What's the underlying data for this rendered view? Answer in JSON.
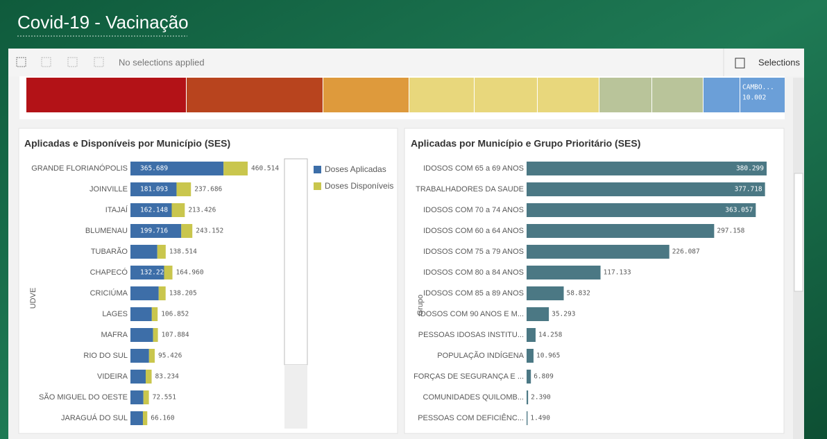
{
  "header": {
    "title": "Covid-19 - Vacinação"
  },
  "toolbar": {
    "status": "No selections applied",
    "selections": "Selections"
  },
  "treemap": {
    "label": "CAMBO...",
    "value": "10.002"
  },
  "chart_data": [
    {
      "type": "bar",
      "orientation": "horizontal",
      "stacked": true,
      "title": "Aplicadas e Disponíveis por Município (SES)",
      "y_label": "UDVE",
      "categories": [
        "GRANDE FLORIANÓPOLIS",
        "JOINVILLE",
        "ITAJAÍ",
        "BLUMENAU",
        "TUBARÃO",
        "CHAPECÓ",
        "CRICIÚMA",
        "LAGES",
        "MAFRA",
        "RIO DO SUL",
        "VIDEIRA",
        "SÃO MIGUEL DO OESTE",
        "JARAGUÁ DO SUL"
      ],
      "series": [
        {
          "name": "Doses Aplicadas",
          "color": "#3d6ea8",
          "values": [
            365689,
            181093,
            162148,
            199716,
            105600,
            132221,
            111000,
            84000,
            89000,
            73000,
            60000,
            51000,
            49000
          ],
          "value_labels": [
            "365.689",
            "181.093",
            "162.148",
            "199.716",
            null,
            "132.221",
            null,
            null,
            null,
            null,
            null,
            null,
            null
          ]
        },
        {
          "name": "Doses Disponíveis",
          "color": "#c9c64d",
          "values": [
            94825,
            56593,
            51278,
            43436,
            32914,
            32739,
            27205,
            22852,
            18884,
            22426,
            23234,
            21551,
            17160
          ]
        }
      ],
      "totals": [
        {
          "value": 460514,
          "label": "460.514"
        },
        {
          "value": 237686,
          "label": "237.686"
        },
        {
          "value": 213426,
          "label": "213.426"
        },
        {
          "value": 243152,
          "label": "243.152"
        },
        {
          "value": 138514,
          "label": "138.514"
        },
        {
          "value": 164960,
          "label": "164.960"
        },
        {
          "value": 138205,
          "label": "138.205"
        },
        {
          "value": 106852,
          "label": "106.852"
        },
        {
          "value": 107884,
          "label": "107.884"
        },
        {
          "value": 95426,
          "label": "95.426"
        },
        {
          "value": 83234,
          "label": "83.234"
        },
        {
          "value": 72551,
          "label": "72.551"
        },
        {
          "value": 66160,
          "label": "66.160"
        }
      ]
    },
    {
      "type": "bar",
      "orientation": "horizontal",
      "title": "Aplicadas por Município e Grupo Prioritário (SES)",
      "y_label": "Grupo",
      "categories": [
        "IDOSOS COM 65 a 69 ANOS",
        "TRABALHADORES DA SAUDE",
        "IDOSOS COM 70 a 74 ANOS",
        "IDOSOS COM 60 a 64 ANOS",
        "IDOSOS COM 75 a 79 ANOS",
        "IDOSOS COM 80 a 84 ANOS",
        "IDOSOS COM 85 a 89 ANOS",
        "IDOSOS COM 90 ANOS E M...",
        "PESSOAS IDOSAS INSTITU...",
        "POPULAÇÃO INDÍGENA",
        "FORÇAS DE SEGURANÇA E ...",
        "COMUNIDADES QUILOMB...",
        "PESSOAS COM DEFICIÊNC..."
      ],
      "color": "#4b7884",
      "values": [
        380299,
        377718,
        363057,
        297158,
        226087,
        117133,
        58832,
        35293,
        14258,
        10965,
        6809,
        2390,
        1490
      ],
      "value_labels": [
        "380.299",
        "377.718",
        "363.057",
        "297.158",
        "226.087",
        "117.133",
        "58.832",
        "35.293",
        "14.258",
        "10.965",
        "6.809",
        "2.390",
        "1.490"
      ]
    }
  ]
}
